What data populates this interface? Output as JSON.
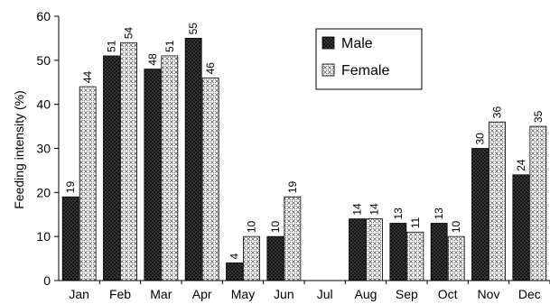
{
  "chart_data": {
    "type": "bar",
    "ylabel": "Feeding intensity (%)",
    "xlabel": "",
    "ylim": [
      0,
      60
    ],
    "yticks": [
      0,
      10,
      20,
      30,
      40,
      50,
      60
    ],
    "grid": false,
    "legend_position": "top-right",
    "categories": [
      "Jan",
      "Feb",
      "Mar",
      "Apr",
      "May",
      "Jun",
      "Jul",
      "Aug",
      "Sep",
      "Oct",
      "Nov",
      "Dec"
    ],
    "series": [
      {
        "name": "Male",
        "values": [
          19,
          51,
          48,
          55,
          4,
          10,
          null,
          14,
          13,
          13,
          30,
          24
        ],
        "labels": [
          "19",
          "51",
          "48",
          "55",
          "4",
          "10",
          "",
          "14",
          "13",
          "13",
          "30",
          "24"
        ],
        "color": "#1a1a1a",
        "pattern": "dark-dotted"
      },
      {
        "name": "Female",
        "values": [
          44,
          54,
          51,
          46,
          10,
          19,
          null,
          14,
          11,
          10,
          36,
          35
        ],
        "labels": [
          "44",
          "54",
          "51",
          "46",
          "10",
          "19",
          "",
          "14",
          "11",
          "10",
          "36",
          "35"
        ],
        "color": "#ffffff",
        "pattern": "light-crosshatch"
      }
    ]
  }
}
